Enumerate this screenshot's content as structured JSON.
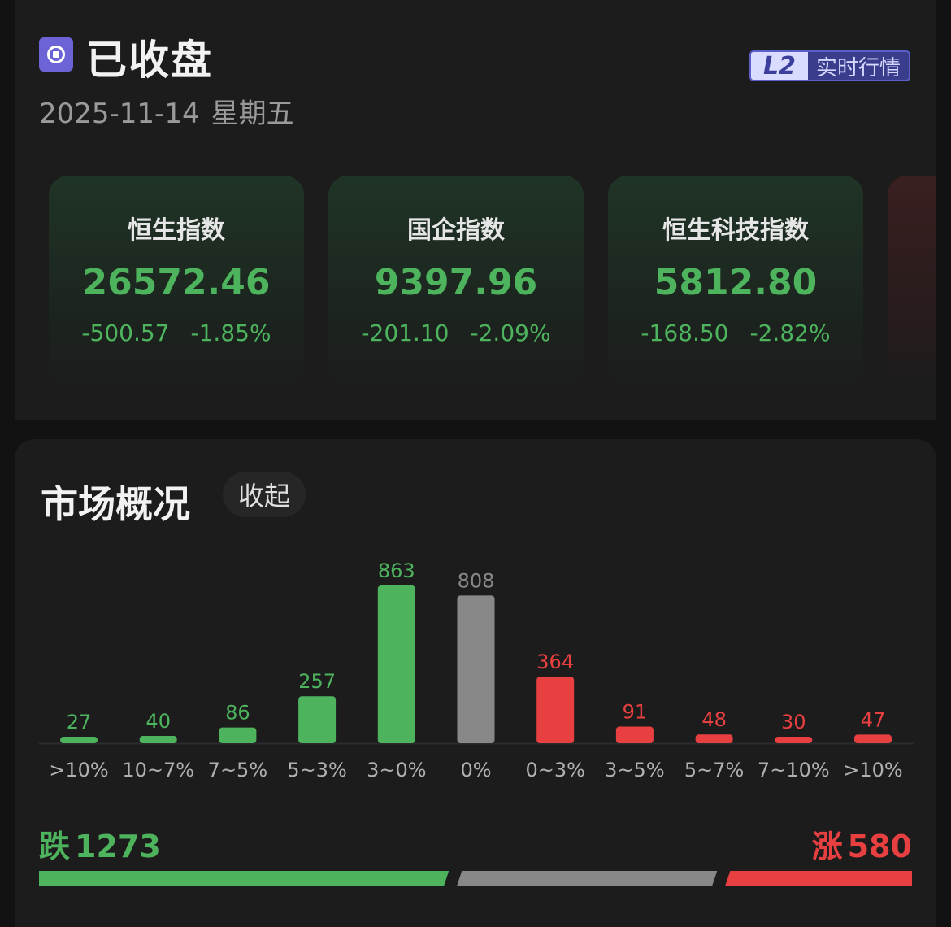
{
  "header": {
    "status": "已收盘",
    "date": "2025-11-14",
    "weekday": "星期五",
    "badge_mark": "L2",
    "badge_text": "实时行情"
  },
  "indices": [
    {
      "name": "恒生指数",
      "value": "26572.46",
      "change": "-500.57",
      "change_pct": "-1.85%"
    },
    {
      "name": "国企指数",
      "value": "9397.96",
      "change": "-201.10",
      "change_pct": "-2.09%"
    },
    {
      "name": "恒生科技指数",
      "value": "5812.80",
      "change": "-168.50",
      "change_pct": "-2.82%"
    }
  ],
  "market": {
    "title": "市场概况",
    "collapse_label": "收起",
    "fall_label": "跌",
    "fall_count": "1273",
    "rise_label": "涨",
    "rise_count": "580"
  },
  "colors": {
    "down": "#4db35d",
    "flat": "#888888",
    "up": "#e84040"
  },
  "chart_data": {
    "type": "bar",
    "categories": [
      ">10%",
      "10~7%",
      "7~5%",
      "5~3%",
      "3~0%",
      "0%",
      "0~3%",
      "3~5%",
      "5~7%",
      "7~10%",
      ">10%"
    ],
    "values": [
      27,
      40,
      86,
      257,
      863,
      808,
      364,
      91,
      48,
      30,
      47
    ],
    "groups": [
      "down",
      "down",
      "down",
      "down",
      "down",
      "flat",
      "up",
      "up",
      "up",
      "up",
      "up"
    ],
    "title": "",
    "xlabel": "",
    "ylabel": "",
    "ylim": [
      0,
      863
    ]
  }
}
